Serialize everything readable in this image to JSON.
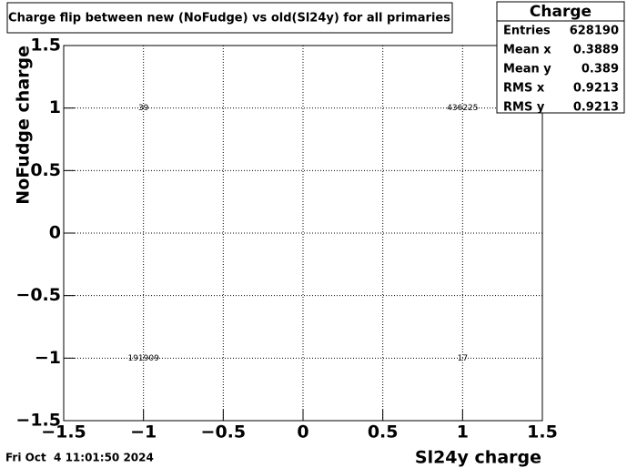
{
  "chart_data": {
    "type": "text2d",
    "title": "Charge flip between new (NoFudge) vs old(Sl24y) for all primaries",
    "x_label": "Sl24y charge",
    "y_label": "NoFudge charge",
    "x": [
      -1,
      1,
      -1,
      1
    ],
    "y": [
      1,
      1,
      -1,
      -1
    ],
    "values": [
      39,
      436225,
      191909,
      17
    ],
    "xlim": [
      -1.5,
      1.5
    ],
    "ylim": [
      -1.5,
      1.5
    ],
    "xticks": [
      {
        "value": -1.5,
        "label": "−1.5"
      },
      {
        "value": -1,
        "label": "−1"
      },
      {
        "value": -0.5,
        "label": "−0.5"
      },
      0,
      0.5,
      1,
      1.5
    ],
    "yticks": [
      {
        "value": -1.5,
        "label": "−1.5"
      },
      {
        "value": -1,
        "label": "−1"
      },
      {
        "value": -0.5,
        "label": "−0.5"
      },
      0,
      0.5,
      1,
      1.5
    ],
    "grid": true,
    "stats": {
      "title": "Charge",
      "rows": [
        {
          "label": "Entries",
          "value": 628190
        },
        {
          "label": "Mean x",
          "value": 0.3889
        },
        {
          "label": "Mean y",
          "value": 0.389
        },
        {
          "label": "RMS x",
          "value": 0.9213
        },
        {
          "label": "RMS y",
          "value": 0.9213
        }
      ]
    },
    "timestamp": "Fri Oct  4 11:01:50 2024"
  }
}
